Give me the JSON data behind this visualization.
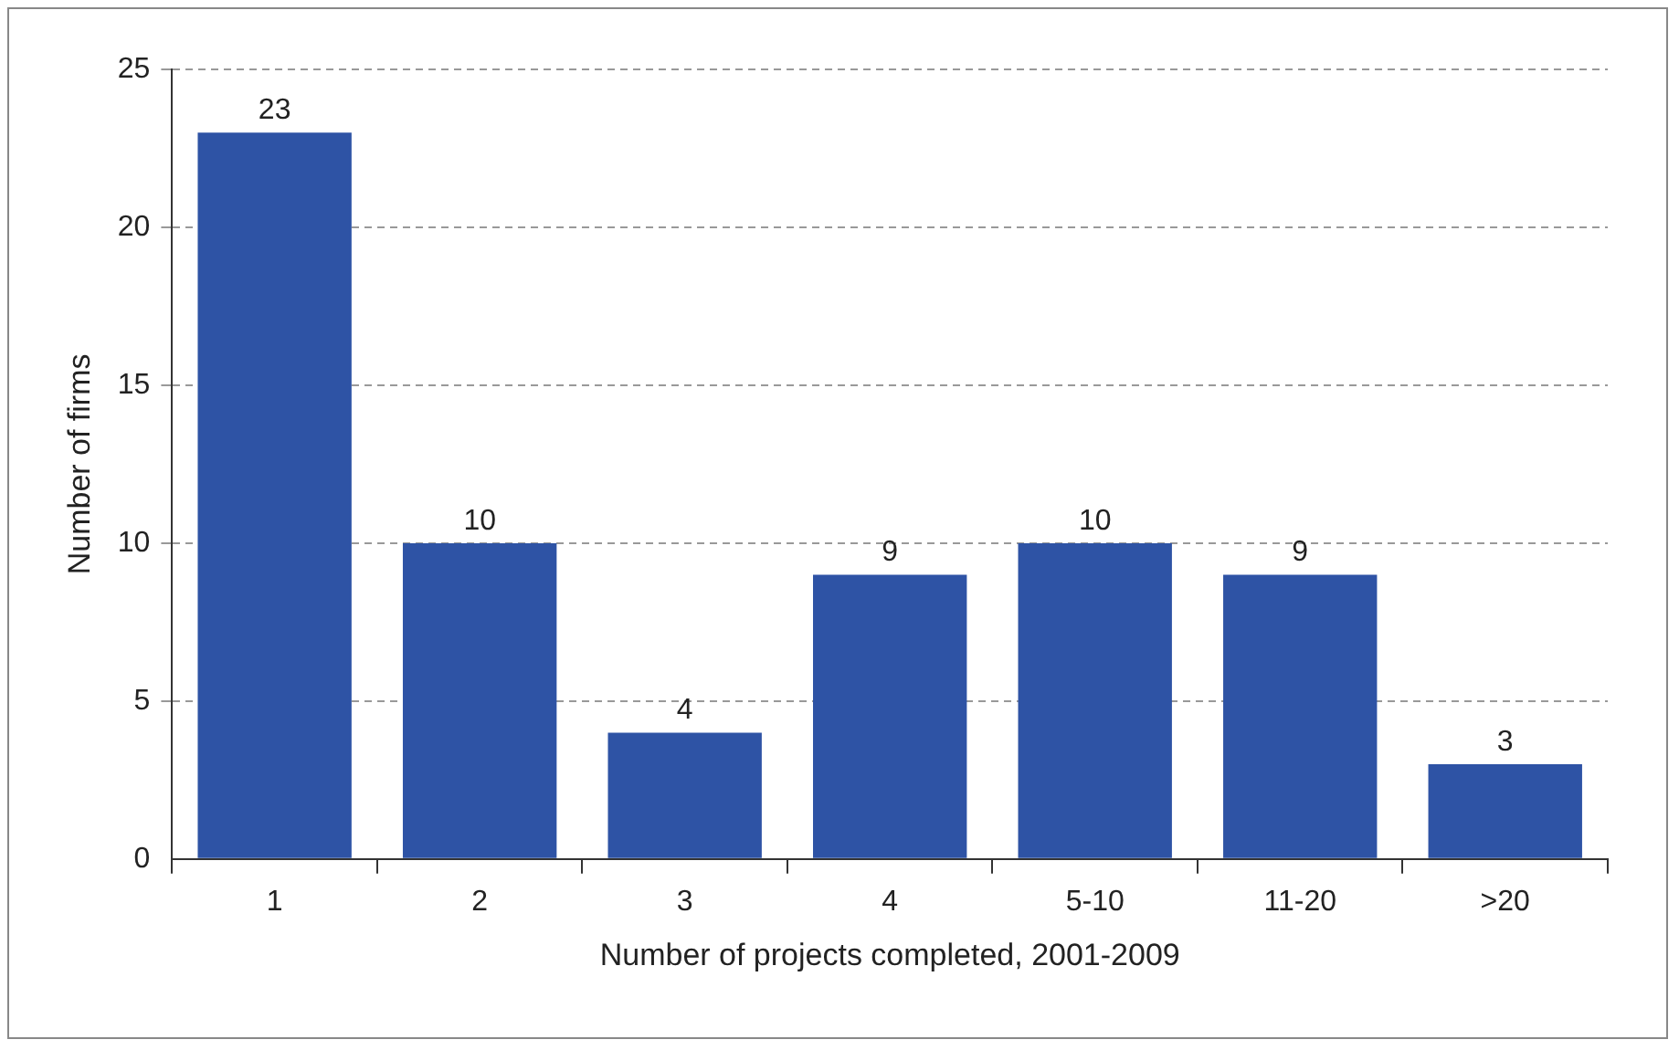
{
  "chart_data": {
    "type": "bar",
    "xlabel": "Number of projects completed, 2001-2009",
    "ylabel": "Number of firms",
    "categories": [
      "1",
      "2",
      "3",
      "4",
      "5-10",
      "11-20",
      ">20"
    ],
    "values": [
      23,
      10,
      4,
      9,
      10,
      9,
      3
    ],
    "color": "#2e53a5",
    "ylim": [
      0,
      25
    ],
    "yticks": [
      0,
      5,
      10,
      15,
      20,
      25
    ],
    "grid": "y",
    "data_labels": true
  }
}
